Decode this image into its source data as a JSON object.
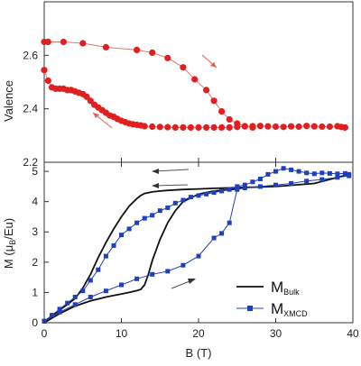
{
  "chart_data": [
    {
      "type": "line",
      "panel": "top",
      "ylabel": "Valence",
      "xlim": [
        0,
        40
      ],
      "ylim": [
        2.2,
        2.8
      ],
      "yticks": [
        "2.2",
        "2.4",
        "2.6"
      ],
      "series": [
        {
          "name": "",
          "color": "#e02020",
          "marker": "circle",
          "x": [
            0,
            0.5,
            2.5,
            5,
            8,
            12,
            14,
            16,
            18,
            19.5,
            21,
            22,
            23,
            24,
            25,
            26,
            27
          ],
          "y": [
            2.65,
            2.65,
            2.65,
            2.645,
            2.63,
            2.62,
            2.61,
            2.59,
            2.555,
            2.51,
            2.47,
            2.43,
            2.39,
            2.36,
            2.345,
            2.335,
            2.33
          ]
        },
        {
          "name": "",
          "color": "#e02020",
          "marker": "circle",
          "x": [
            0,
            0.5,
            1,
            1.5,
            2,
            2.5,
            3,
            3.5,
            4,
            4.5,
            5,
            5.5,
            6,
            6.5,
            7,
            7.5,
            8,
            8.5,
            9,
            9.5,
            10,
            10.5,
            11,
            11.5,
            12,
            12.5,
            13,
            14,
            15,
            16,
            17,
            18,
            19,
            20,
            21,
            22,
            23,
            24,
            25,
            26,
            27,
            28,
            29,
            30,
            31,
            32,
            33,
            34,
            35,
            36,
            37,
            38,
            38.5,
            39
          ],
          "y": [
            2.545,
            2.505,
            2.48,
            2.475,
            2.475,
            2.475,
            2.47,
            2.47,
            2.465,
            2.46,
            2.455,
            2.445,
            2.43,
            2.415,
            2.405,
            2.395,
            2.385,
            2.375,
            2.37,
            2.362,
            2.355,
            2.35,
            2.345,
            2.342,
            2.34,
            2.338,
            2.335,
            2.333,
            2.332,
            2.331,
            2.33,
            2.33,
            2.33,
            2.33,
            2.33,
            2.33,
            2.33,
            2.33,
            2.332,
            2.334,
            2.335,
            2.336,
            2.334,
            2.333,
            2.332,
            2.334,
            2.333,
            2.336,
            2.334,
            2.333,
            2.333,
            2.335,
            2.332,
            2.33
          ]
        }
      ]
    },
    {
      "type": "line",
      "panel": "bottom",
      "xlabel": "B (T)",
      "ylabel_main": "M (μ",
      "ylabel_sub": "B",
      "ylabel_tail": "/Eu)",
      "xlim": [
        0,
        40
      ],
      "ylim": [
        0,
        5.3
      ],
      "xticks": [
        "0",
        "10",
        "20",
        "30",
        "40"
      ],
      "yticks": [
        "0",
        "1",
        "2",
        "3",
        "4",
        "5"
      ],
      "legend_position": "lower-right",
      "series": [
        {
          "name_main": "M",
          "name_sub": "Bulk",
          "color": "#111111",
          "marker": "none",
          "x": [
            0,
            1,
            2,
            3,
            4,
            5,
            6,
            7,
            8,
            9,
            10,
            11,
            12,
            12.5,
            13,
            14,
            15,
            16,
            18,
            20,
            22,
            25,
            30,
            35,
            39.5
          ],
          "y": [
            0,
            0.22,
            0.42,
            0.6,
            0.8,
            1.15,
            1.6,
            2.15,
            2.65,
            3.1,
            3.5,
            3.85,
            4.1,
            4.2,
            4.27,
            4.32,
            4.35,
            4.37,
            4.4,
            4.42,
            4.44,
            4.46,
            4.5,
            4.6,
            4.9
          ]
        },
        {
          "name_main": "",
          "name_sub": "",
          "color": "#111111",
          "marker": "none",
          "x": [
            0,
            2,
            4,
            6,
            8,
            10,
            11,
            12,
            12.5,
            13,
            13.5,
            14,
            15,
            16,
            17,
            18,
            20,
            22,
            25
          ],
          "y": [
            0,
            0.3,
            0.55,
            0.72,
            0.85,
            0.95,
            1.0,
            1.06,
            1.1,
            1.25,
            1.6,
            2.05,
            2.75,
            3.3,
            3.7,
            4.0,
            4.25,
            4.35,
            4.42
          ]
        },
        {
          "name_main": "M",
          "name_sub": "XMCD",
          "color": "#1f3fbf",
          "marker": "square",
          "x": [
            0,
            1,
            2,
            3,
            4,
            5,
            6,
            7,
            8,
            9,
            10,
            11,
            12,
            13,
            14,
            15,
            16,
            17,
            18,
            19,
            20,
            21,
            22,
            23,
            24,
            25,
            26,
            27,
            28,
            29,
            30,
            31,
            32,
            33,
            34,
            35,
            36,
            37,
            38,
            39,
            39.5
          ],
          "y": [
            0.05,
            0.25,
            0.45,
            0.65,
            0.85,
            1.05,
            1.4,
            1.75,
            2.2,
            2.55,
            2.9,
            3.1,
            3.3,
            3.45,
            3.55,
            3.7,
            3.8,
            3.95,
            4.05,
            4.15,
            4.2,
            4.25,
            4.3,
            4.35,
            4.4,
            4.5,
            4.55,
            4.65,
            4.75,
            4.9,
            5.0,
            5.1,
            5.05,
            5.0,
            4.95,
            4.92,
            4.95,
            4.93,
            4.92,
            4.93,
            4.9
          ]
        },
        {
          "name_main": "",
          "name_sub": "",
          "color": "#1f3fbf",
          "marker": "square",
          "x": [
            0,
            2,
            4,
            6,
            8,
            10,
            12,
            14,
            16,
            18,
            20,
            22,
            23,
            24,
            25,
            26,
            28,
            30,
            32,
            34,
            36,
            38,
            39.5
          ],
          "y": [
            0.05,
            0.35,
            0.6,
            0.85,
            1.05,
            1.25,
            1.45,
            1.6,
            1.7,
            1.9,
            2.2,
            2.8,
            2.95,
            3.3,
            4.4,
            4.45,
            4.5,
            4.55,
            4.6,
            4.68,
            4.73,
            4.8,
            4.85
          ]
        }
      ]
    }
  ]
}
